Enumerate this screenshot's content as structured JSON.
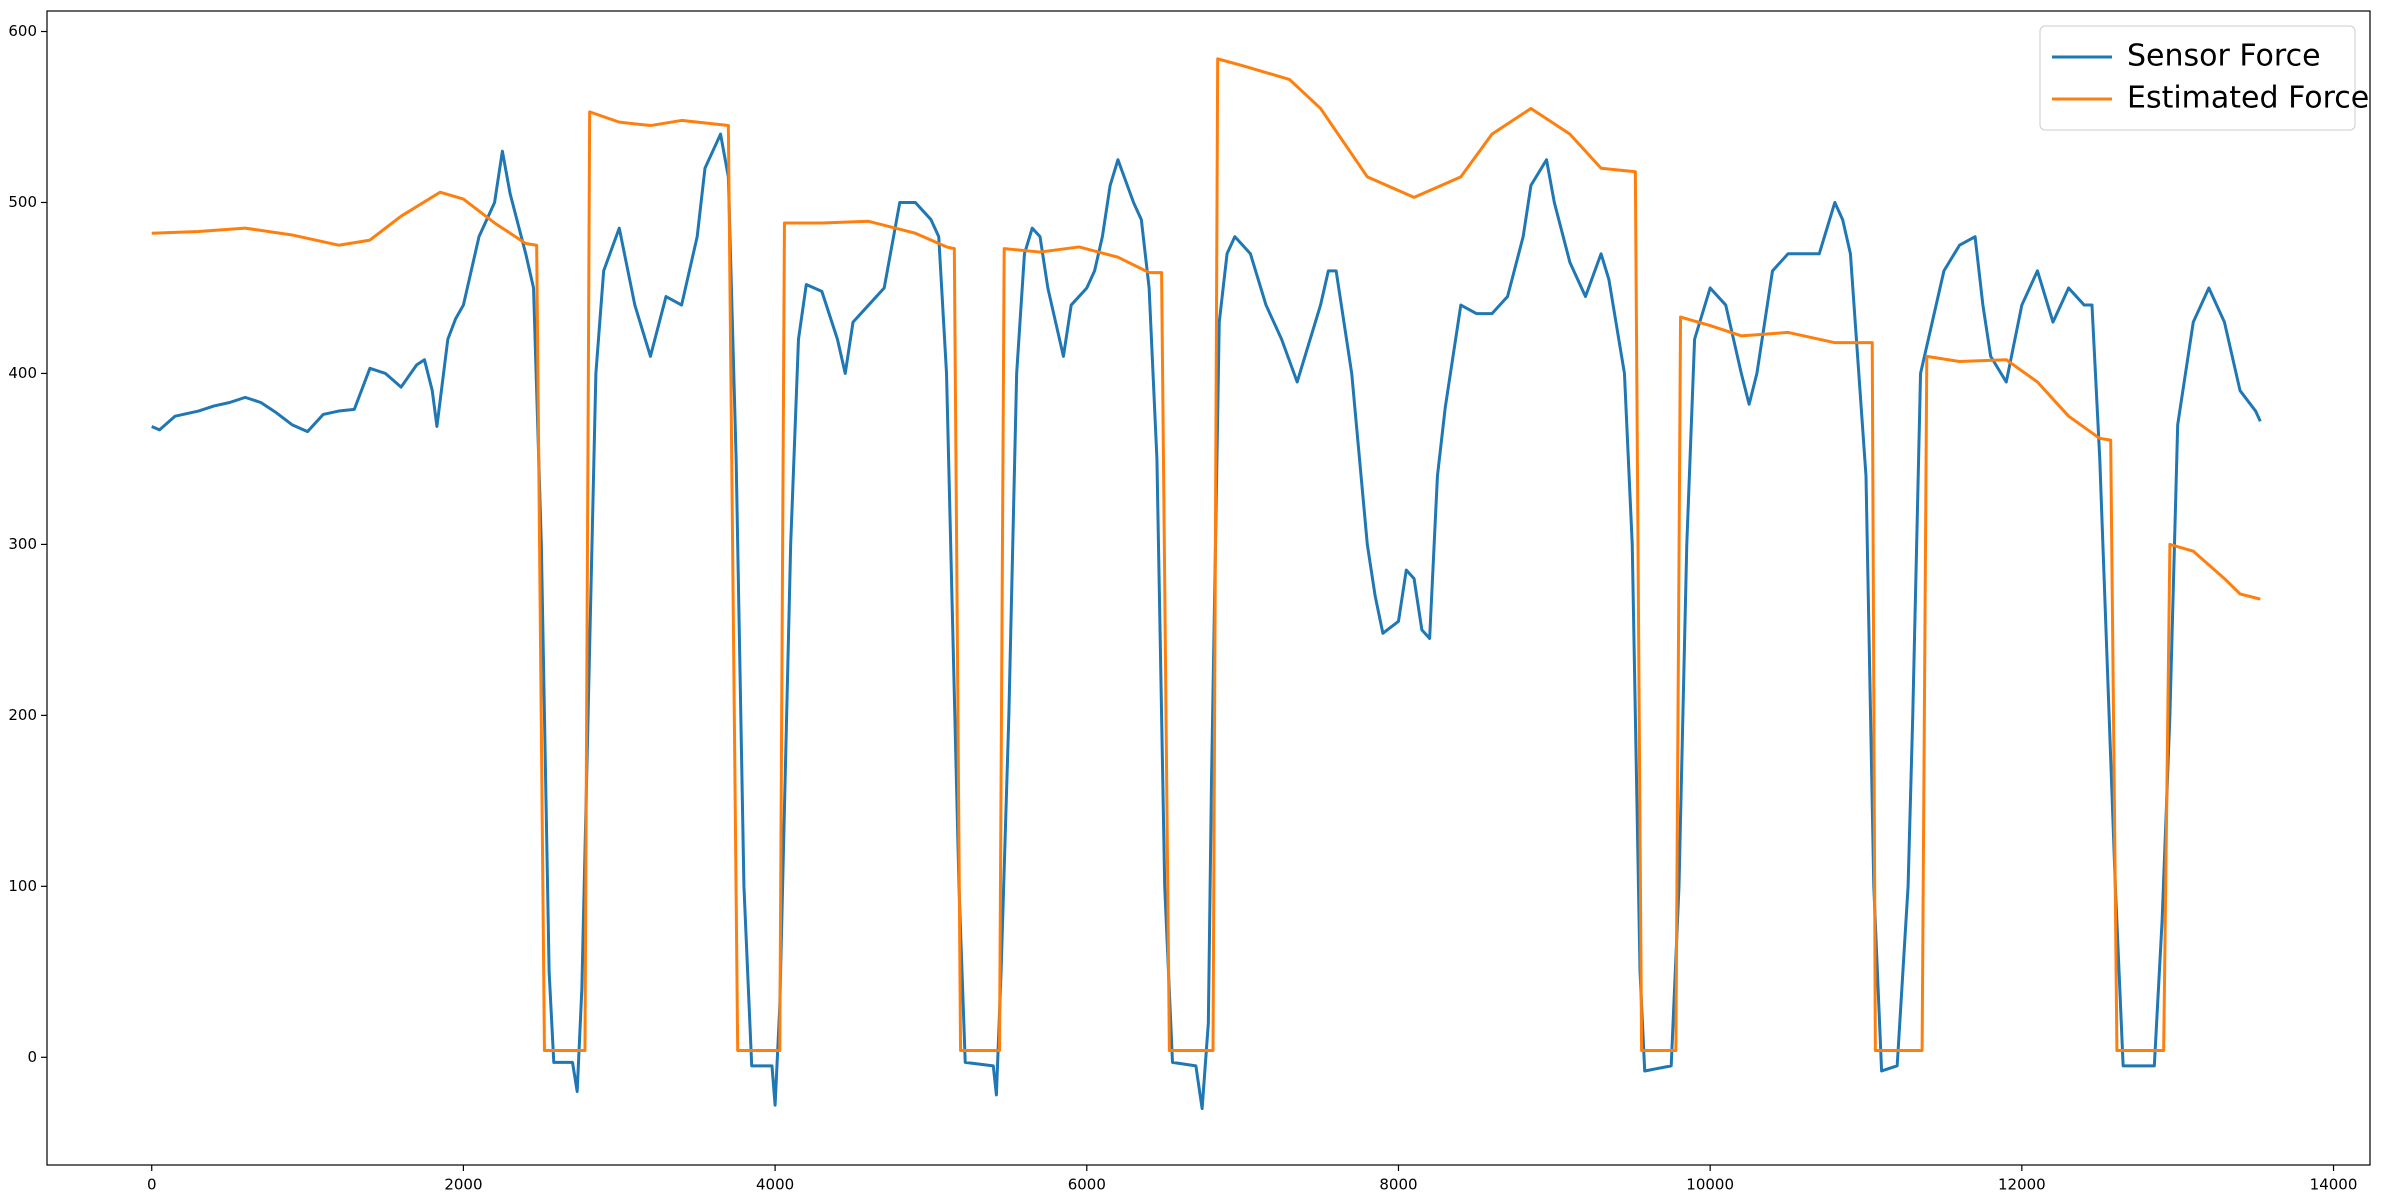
{
  "chart_data": {
    "type": "line",
    "xlim": [
      -672,
      14234
    ],
    "ylim": [
      -63,
      612
    ],
    "xticks": [
      0,
      2000,
      4000,
      6000,
      8000,
      10000,
      12000,
      14000
    ],
    "yticks": [
      0,
      100,
      200,
      300,
      400,
      500,
      600
    ],
    "legend": "upper right",
    "series": [
      {
        "name": "Sensor Force",
        "color": "#1f77b4",
        "x": [
          0,
          50,
          150,
          300,
          400,
          500,
          600,
          700,
          800,
          900,
          1000,
          1100,
          1200,
          1300,
          1400,
          1500,
          1600,
          1700,
          1750,
          1800,
          1830,
          1900,
          1950,
          2000,
          2100,
          2200,
          2250,
          2300,
          2400,
          2450,
          2500,
          2550,
          2580,
          2700,
          2730,
          2760,
          2800,
          2850,
          2900,
          3000,
          3100,
          3200,
          3300,
          3400,
          3500,
          3550,
          3600,
          3650,
          3700,
          3750,
          3800,
          3850,
          3980,
          4000,
          4030,
          4100,
          4150,
          4200,
          4300,
          4400,
          4450,
          4500,
          4600,
          4700,
          4800,
          4900,
          5000,
          5050,
          5100,
          5180,
          5220,
          5400,
          5420,
          5450,
          5500,
          5550,
          5600,
          5650,
          5700,
          5750,
          5800,
          5850,
          5900,
          6000,
          6050,
          6100,
          6150,
          6200,
          6300,
          6350,
          6400,
          6450,
          6500,
          6550,
          6700,
          6740,
          6780,
          6800,
          6850,
          6900,
          6950,
          7050,
          7150,
          7250,
          7350,
          7400,
          7500,
          7550,
          7600,
          7700,
          7750,
          7800,
          7850,
          7900,
          8000,
          8050,
          8100,
          8150,
          8200,
          8250,
          8300,
          8400,
          8500,
          8600,
          8700,
          8800,
          8850,
          8950,
          9000,
          9100,
          9200,
          9300,
          9350,
          9450,
          9500,
          9550,
          9580,
          9750,
          9800,
          9850,
          9900,
          10000,
          10100,
          10200,
          10250,
          10300,
          10400,
          10500,
          10600,
          10700,
          10800,
          10850,
          10900,
          11000,
          11050,
          11100,
          11200,
          11270,
          11300,
          11350,
          11400,
          11500,
          11600,
          11700,
          11750,
          11800,
          11900,
          12000,
          12100,
          12200,
          12300,
          12400,
          12450,
          12500,
          12600,
          12650,
          12850,
          12900,
          12950,
          13000,
          13050,
          13100,
          13150,
          13200,
          13300,
          13400,
          13500,
          13530
        ],
        "values": [
          369,
          367,
          375,
          378,
          381,
          383,
          386,
          383,
          377,
          370,
          366,
          376,
          378,
          379,
          403,
          400,
          392,
          405,
          408,
          390,
          369,
          420,
          432,
          440,
          480,
          500,
          530,
          505,
          470,
          450,
          300,
          50,
          -3,
          -3,
          -20,
          40,
          200,
          400,
          460,
          485,
          440,
          410,
          445,
          440,
          480,
          520,
          530,
          540,
          515,
          350,
          100,
          -5,
          -5,
          -28,
          30,
          300,
          420,
          452,
          448,
          420,
          400,
          430,
          440,
          450,
          500,
          500,
          490,
          480,
          400,
          100,
          -3,
          -5,
          -22,
          50,
          200,
          400,
          470,
          485,
          480,
          450,
          430,
          410,
          440,
          450,
          460,
          480,
          510,
          525,
          500,
          490,
          450,
          350,
          100,
          -3,
          -5,
          -30,
          20,
          160,
          430,
          470,
          480,
          470,
          440,
          420,
          395,
          410,
          440,
          460,
          460,
          400,
          350,
          300,
          270,
          248,
          255,
          285,
          280,
          250,
          245,
          340,
          380,
          440,
          435,
          435,
          445,
          480,
          510,
          525,
          500,
          465,
          445,
          470,
          455,
          400,
          300,
          50,
          -8,
          -5,
          100,
          300,
          420,
          450,
          440,
          400,
          382,
          400,
          460,
          470,
          470,
          470,
          500,
          490,
          470,
          340,
          100,
          -8,
          -5,
          100,
          200,
          400,
          420,
          460,
          475,
          480,
          440,
          410,
          395,
          440,
          460,
          430,
          450,
          440,
          440,
          350,
          100,
          -5,
          -5,
          80,
          200,
          370,
          400,
          430,
          440,
          450,
          430,
          390,
          378,
          372
        ]
      },
      {
        "name": "Estimated Force",
        "color": "#ff7f0e",
        "x": [
          0,
          300,
          600,
          900,
          1200,
          1400,
          1600,
          1850,
          2000,
          2200,
          2400,
          2470,
          2520,
          2780,
          2810,
          3000,
          3200,
          3400,
          3700,
          3760,
          4030,
          4060,
          4300,
          4600,
          4900,
          5100,
          5150,
          5190,
          5440,
          5470,
          5700,
          5950,
          6200,
          6400,
          6480,
          6530,
          6810,
          6840,
          7000,
          7300,
          7500,
          7800,
          8100,
          8400,
          8600,
          8850,
          9100,
          9300,
          9520,
          9560,
          9780,
          9810,
          10000,
          10200,
          10500,
          10800,
          11040,
          11060,
          11360,
          11390,
          11600,
          11900,
          12100,
          12300,
          12500,
          12570,
          12610,
          12910,
          12950,
          13100,
          13300,
          13400,
          13530
        ],
        "values": [
          482,
          483,
          485,
          481,
          475,
          478,
          492,
          506,
          502,
          488,
          476,
          475,
          4,
          4,
          553,
          547,
          545,
          548,
          545,
          4,
          4,
          488,
          488,
          489,
          482,
          474,
          473,
          4,
          4,
          473,
          471,
          474,
          468,
          459,
          459,
          4,
          4,
          584,
          580,
          572,
          555,
          515,
          503,
          515,
          540,
          555,
          540,
          520,
          518,
          4,
          4,
          433,
          428,
          422,
          424,
          418,
          418,
          4,
          4,
          410,
          407,
          408,
          395,
          375,
          362,
          361,
          4,
          4,
          300,
          296,
          280,
          271,
          268
        ]
      }
    ]
  }
}
